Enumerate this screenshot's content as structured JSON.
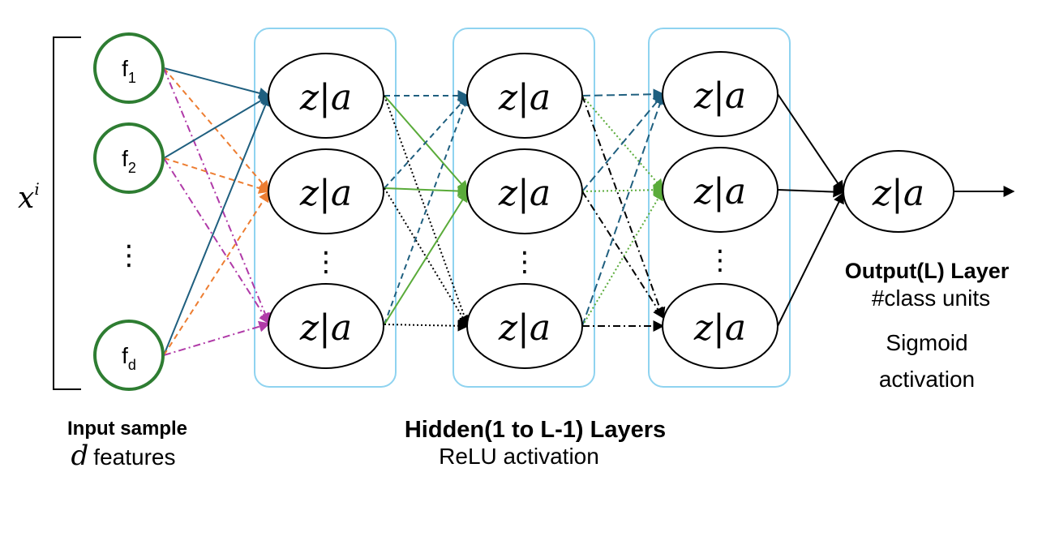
{
  "input": {
    "sample_symbol": "x",
    "sample_superscript": "i",
    "features": [
      {
        "base": "f",
        "sub": "1"
      },
      {
        "base": "f",
        "sub": "2"
      },
      {
        "base": "f",
        "sub": "d"
      }
    ],
    "ellipsis": "⋮",
    "caption_title": "Input sample",
    "caption_symbol": "d",
    "caption_text": "features"
  },
  "node_label": "z|a",
  "hidden": {
    "ellipsis": "⋮",
    "caption_title": "Hidden(1 to L-1) Layers",
    "caption_sub": "ReLU activation"
  },
  "output": {
    "title": "Output(L) Layer",
    "line1": "#class units",
    "line2": "Sigmoid",
    "line3": "activation"
  },
  "colors": {
    "input_node_stroke": "#2e7d32",
    "layer_box": "#8fd3f0",
    "edge_teal": "#1f5f7f",
    "edge_orange": "#ed7d31",
    "edge_magenta": "#b03aa8",
    "edge_green": "#5aab3a",
    "edge_black": "#000000"
  }
}
